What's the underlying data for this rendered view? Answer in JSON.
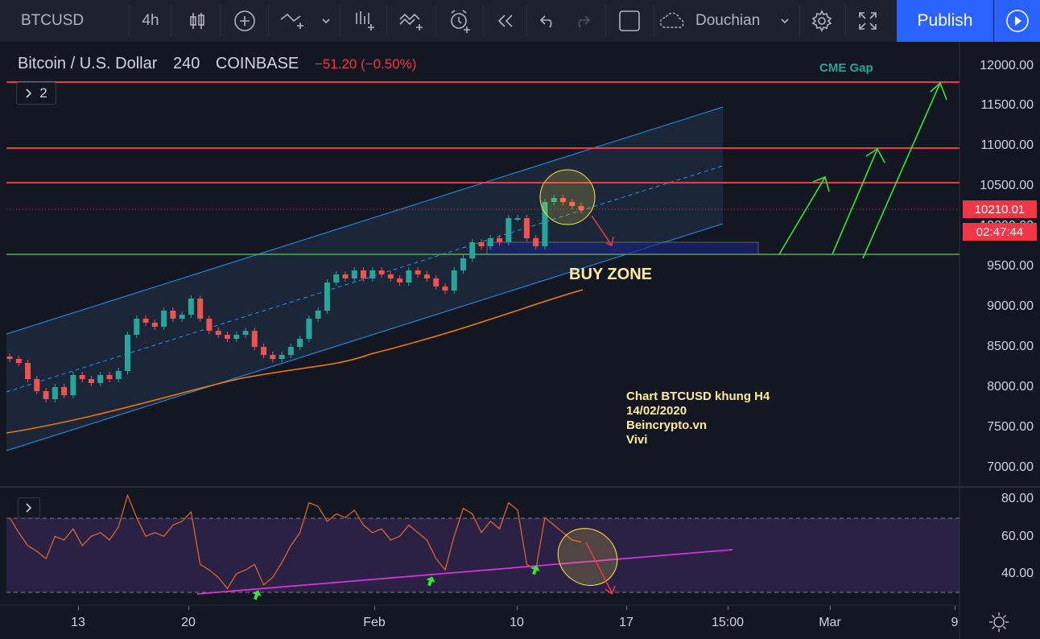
{
  "toolbar": {
    "symbol": "BTCUSD",
    "interval": "4h",
    "template": "Douchian",
    "publish_label": "Publish"
  },
  "legend": {
    "title": "Bitcoin / U.S. Dollar",
    "interval": "240",
    "exchange": "COINBASE",
    "change": "−51.20 (−0.50%)",
    "indicators_count": "2"
  },
  "price_axis": {
    "ticks": [
      "12000.00",
      "11500.00",
      "11000.00",
      "10500.00",
      "10000.00",
      "9500.00",
      "9000.00",
      "8500.00",
      "8000.00",
      "7500.00",
      "7000.00"
    ],
    "current_price": "10210.01",
    "countdown": "02:47:44"
  },
  "rsi_axis": {
    "ticks": [
      "80.00",
      "60.00",
      "40.00"
    ]
  },
  "time_axis": {
    "ticks": [
      "13",
      "20",
      "Feb",
      "10",
      "17",
      "15:00",
      "Mar",
      "9"
    ]
  },
  "annotations": {
    "cme_gap": "CME Gap",
    "buy_zone": "BUY ZONE",
    "note_line1": "Chart BTCUSD khung H4",
    "note_line2": "14/02/2020",
    "note_line3": "Beincrypto.vn",
    "note_line4": "Vivi"
  },
  "colors": {
    "background": "#131722",
    "resistance": "#f23645",
    "support": "#4caf50",
    "channel": "#2196f3",
    "ma": "#f57c00",
    "rsi": "#e86a28",
    "trendline": "#d633d6",
    "arrow_up": "#33e633",
    "arrow_down": "#f23645",
    "highlight": "#ffeb3b",
    "publish": "#2962ff"
  },
  "chart_data": {
    "type": "candlestick",
    "symbol": "BTCUSD",
    "ylim": [
      6700,
      12300
    ],
    "close_series": [
      8350,
      8300,
      8100,
      7950,
      7850,
      8000,
      7900,
      8150,
      8100,
      8050,
      8150,
      8100,
      8200,
      8650,
      8850,
      8800,
      8750,
      8950,
      8850,
      8900,
      9100,
      8850,
      8700,
      8650,
      8600,
      8650,
      8700,
      8500,
      8400,
      8350,
      8400,
      8500,
      8600,
      8850,
      8950,
      9300,
      9400,
      9350,
      9450,
      9350,
      9450,
      9400,
      9350,
      9300,
      9450,
      9400,
      9350,
      9250,
      9200,
      9450,
      9600,
      9800,
      9750,
      9850,
      9800,
      10100,
      10100,
      9850,
      9750,
      10300,
      10350,
      10300,
      10250,
      10200
    ],
    "rsi_series": [
      70,
      62,
      55,
      52,
      48,
      60,
      58,
      64,
      55,
      60,
      62,
      58,
      65,
      82,
      70,
      60,
      62,
      60,
      66,
      68,
      73,
      45,
      42,
      38,
      32,
      40,
      42,
      45,
      34,
      38,
      46,
      55,
      62,
      78,
      76,
      68,
      72,
      70,
      74,
      66,
      62,
      64,
      58,
      60,
      66,
      62,
      58,
      48,
      42,
      60,
      75,
      72,
      62,
      68,
      64,
      78,
      74,
      45,
      42,
      70,
      66,
      62,
      58,
      57
    ],
    "resistance_levels": [
      11800,
      10950,
      10530
    ],
    "support_level": 9620,
    "current_price": 10210.01
  }
}
